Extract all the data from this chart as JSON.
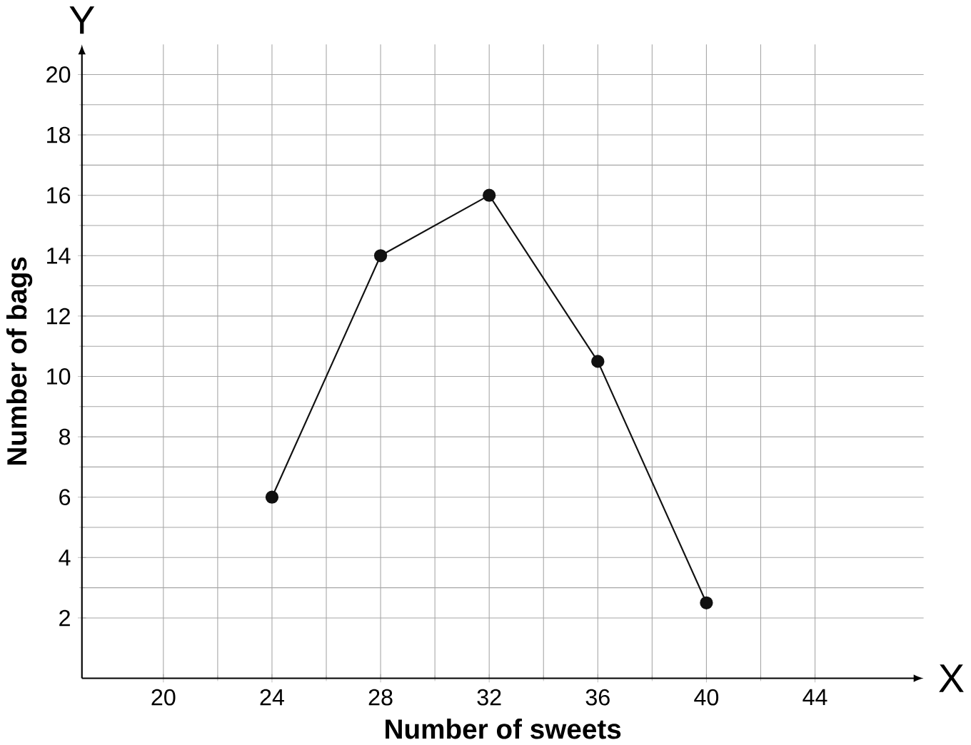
{
  "chart_data": {
    "type": "line",
    "xlabel": "Number of sweets",
    "ylabel": "Number of bags",
    "x": [
      24,
      28,
      32,
      36,
      40
    ],
    "series": [
      {
        "color": "#111111",
        "values": [
          6,
          14,
          16,
          10.5,
          2.5
        ]
      }
    ],
    "xlim": [
      17,
      48
    ],
    "ylim": [
      0,
      21
    ],
    "xticks": [
      20,
      24,
      28,
      32,
      36,
      40,
      44
    ],
    "yticks": [
      2,
      4,
      6,
      8,
      10,
      12,
      14,
      16,
      18,
      20
    ],
    "grid": true,
    "marker": "circle",
    "line_style": "solid",
    "annotations": [
      "X",
      "Y"
    ]
  }
}
